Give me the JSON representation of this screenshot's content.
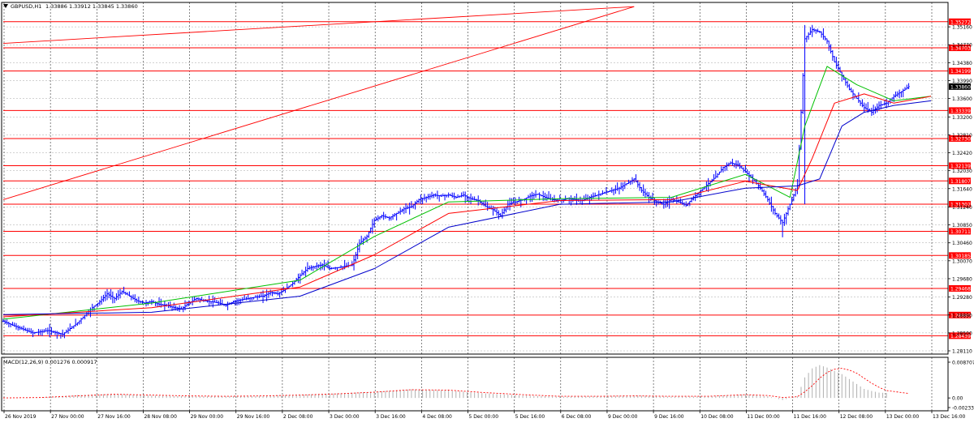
{
  "header": {
    "symbol_timeframe": "GBPUSD,H1",
    "ohlc": "1.33886 1.33912 1.33845 1.33860",
    "icon": "triangle-down-icon"
  },
  "macd_header": {
    "label": "MACD(12,26,9) 0.001276 0.000917"
  },
  "colors": {
    "background": "#ffffff",
    "grid": "#000000",
    "candles": "#0000ff",
    "sma_green": "#00c000",
    "sma_red": "#ff0000",
    "sma_blue": "#0000cc",
    "horizontal_levels": "#ff0000",
    "trend_lines": "#ff0000",
    "macd_hist": "#b0b0b0",
    "macd_signal": "#ff0000",
    "price_label_bg": "#ff0000",
    "current_price_bg": "#000000"
  },
  "chart_data": [
    {
      "type": "candlestick",
      "title": "GBPUSD,H1",
      "ylim": [
        1.2811,
        1.3555
      ],
      "y_ticks": [
        "1.35160",
        "1.34770",
        "1.34380",
        "1.33990",
        "1.33600",
        "1.33200",
        "1.32810",
        "1.32420",
        "1.32030",
        "1.31640",
        "1.31240",
        "1.30850",
        "1.30460",
        "1.30070",
        "1.29680",
        "1.29280",
        "1.28890",
        "1.28500",
        "1.28110"
      ],
      "y_tick_values": [
        1.3516,
        1.3477,
        1.3438,
        1.3399,
        1.336,
        1.332,
        1.3281,
        1.3242,
        1.3203,
        1.3164,
        1.3124,
        1.3085,
        1.3046,
        1.3007,
        1.2968,
        1.2928,
        1.2889,
        1.285,
        1.2811
      ],
      "x_labels": [
        "26 Nov 2019",
        "27 Nov 00:00",
        "27 Nov 16:00",
        "28 Nov 08:00",
        "29 Nov 00:00",
        "29 Nov 16:00",
        "2 Dec 08:00",
        "3 Dec 00:00",
        "3 Dec 16:00",
        "4 Dec 08:00",
        "5 Dec 00:00",
        "5 Dec 16:00",
        "6 Dec 08:00",
        "9 Dec 00:00",
        "9 Dec 16:00",
        "10 Dec 08:00",
        "11 Dec 00:00",
        "11 Dec 16:00",
        "12 Dec 08:00",
        "13 Dec 00:00",
        "13 Dec 16:00"
      ],
      "horizontal_levels": [
        "1.35272",
        "1.34703",
        "1.34199",
        "1.33339",
        "1.32730",
        "1.32139",
        "1.31807",
        "1.31302",
        "1.30711",
        "1.30185",
        "1.29468",
        "1.28889",
        "1.28439"
      ],
      "current_price": "1.33860",
      "price_path": [
        [
          0,
          1.2875
        ],
        [
          4,
          1.2862
        ],
        [
          8,
          1.285
        ],
        [
          12,
          1.2855
        ],
        [
          16,
          1.2847
        ],
        [
          20,
          1.2872
        ],
        [
          24,
          1.2905
        ],
        [
          26,
          1.2918
        ],
        [
          28,
          1.2935
        ],
        [
          30,
          1.2925
        ],
        [
          32,
          1.294
        ],
        [
          34,
          1.293
        ],
        [
          36,
          1.292
        ],
        [
          38,
          1.2915
        ],
        [
          40,
          1.2918
        ],
        [
          42,
          1.2912
        ],
        [
          44,
          1.291
        ],
        [
          46,
          1.2905
        ],
        [
          48,
          1.2902
        ],
        [
          50,
          1.2915
        ],
        [
          52,
          1.2925
        ],
        [
          54,
          1.292
        ],
        [
          56,
          1.2918
        ],
        [
          58,
          1.2915
        ],
        [
          60,
          1.291
        ],
        [
          62,
          1.2918
        ],
        [
          64,
          1.2922
        ],
        [
          66,
          1.2925
        ],
        [
          68,
          1.2928
        ],
        [
          70,
          1.293
        ],
        [
          72,
          1.2938
        ],
        [
          74,
          1.2935
        ],
        [
          76,
          1.2945
        ],
        [
          78,
          1.2958
        ],
        [
          80,
          1.2975
        ],
        [
          82,
          1.299
        ],
        [
          84,
          1.2995
        ],
        [
          86,
          1.2998
        ],
        [
          88,
          1.299
        ],
        [
          90,
          1.2992
        ],
        [
          92,
          1.2995
        ],
        [
          94,
          1.2998
        ],
        [
          95,
          1.302
        ],
        [
          96,
          1.3045
        ],
        [
          98,
          1.306
        ],
        [
          100,
          1.3095
        ],
        [
          102,
          1.3105
        ],
        [
          104,
          1.31
        ],
        [
          106,
          1.311
        ],
        [
          108,
          1.312
        ],
        [
          110,
          1.3125
        ],
        [
          112,
          1.314
        ],
        [
          114,
          1.3145
        ],
        [
          116,
          1.315
        ],
        [
          118,
          1.3148
        ],
        [
          120,
          1.315
        ],
        [
          122,
          1.3145
        ],
        [
          124,
          1.315
        ],
        [
          126,
          1.3142
        ],
        [
          128,
          1.3138
        ],
        [
          130,
          1.3125
        ],
        [
          132,
          1.3118
        ],
        [
          134,
          1.3105
        ],
        [
          136,
          1.313
        ],
        [
          138,
          1.3135
        ],
        [
          140,
          1.314
        ],
        [
          142,
          1.3148
        ],
        [
          144,
          1.3152
        ],
        [
          146,
          1.3145
        ],
        [
          148,
          1.314
        ],
        [
          150,
          1.3138
        ],
        [
          152,
          1.3142
        ],
        [
          154,
          1.314
        ],
        [
          156,
          1.3138
        ],
        [
          158,
          1.3145
        ],
        [
          160,
          1.315
        ],
        [
          162,
          1.3155
        ],
        [
          164,
          1.316
        ],
        [
          166,
          1.3165
        ],
        [
          168,
          1.3175
        ],
        [
          170,
          1.3185
        ],
        [
          172,
          1.316
        ],
        [
          174,
          1.3145
        ],
        [
          176,
          1.3135
        ],
        [
          178,
          1.313
        ],
        [
          180,
          1.314
        ],
        [
          182,
          1.3135
        ],
        [
          184,
          1.3128
        ],
        [
          186,
          1.3145
        ],
        [
          188,
          1.316
        ],
        [
          190,
          1.3175
        ],
        [
          192,
          1.319
        ],
        [
          194,
          1.321
        ],
        [
          196,
          1.322
        ],
        [
          198,
          1.3215
        ],
        [
          200,
          1.32
        ],
        [
          202,
          1.3185
        ],
        [
          204,
          1.3165
        ],
        [
          206,
          1.314
        ],
        [
          208,
          1.311
        ],
        [
          210,
          1.309
        ],
        [
          212,
          1.313
        ],
        [
          214,
          1.317
        ],
        [
          216,
          1.349
        ],
        [
          218,
          1.351
        ],
        [
          220,
          1.3505
        ],
        [
          222,
          1.3485
        ],
        [
          224,
          1.344
        ],
        [
          226,
          1.341
        ],
        [
          228,
          1.338
        ],
        [
          230,
          1.336
        ],
        [
          232,
          1.334
        ],
        [
          234,
          1.333
        ],
        [
          236,
          1.3345
        ],
        [
          238,
          1.335
        ],
        [
          240,
          1.3365
        ],
        [
          242,
          1.3375
        ],
        [
          244,
          1.3386
        ]
      ],
      "series": [
        {
          "name": "",
          "values": [
            [
              0,
              1.288
            ],
            [
              40,
              1.2915
            ],
            [
              80,
              1.2965
            ],
            [
              100,
              1.306
            ],
            [
              120,
              1.3135
            ],
            [
              150,
              1.3142
            ],
            [
              180,
              1.3145
            ],
            [
              200,
              1.3195
            ],
            [
              212,
              1.3145
            ],
            [
              216,
              1.33
            ],
            [
              222,
              1.343
            ],
            [
              230,
              1.339
            ],
            [
              240,
              1.3355
            ],
            [
              250,
              1.3365
            ]
          ]
        },
        {
          "name": "",
          "values": [
            [
              0,
              1.2885
            ],
            [
              40,
              1.2905
            ],
            [
              80,
              1.295
            ],
            [
              100,
              1.302
            ],
            [
              120,
              1.311
            ],
            [
              150,
              1.3138
            ],
            [
              180,
              1.314
            ],
            [
              200,
              1.318
            ],
            [
              214,
              1.316
            ],
            [
              218,
              1.323
            ],
            [
              224,
              1.335
            ],
            [
              232,
              1.337
            ],
            [
              240,
              1.335
            ],
            [
              250,
              1.3365
            ]
          ]
        },
        {
          "name": "",
          "values": [
            [
              0,
              1.289
            ],
            [
              40,
              1.2895
            ],
            [
              80,
              1.293
            ],
            [
              100,
              1.299
            ],
            [
              120,
              1.308
            ],
            [
              150,
              1.313
            ],
            [
              180,
              1.3135
            ],
            [
              200,
              1.3165
            ],
            [
              214,
              1.317
            ],
            [
              220,
              1.3185
            ],
            [
              226,
              1.33
            ],
            [
              232,
              1.333
            ],
            [
              240,
              1.3345
            ],
            [
              250,
              1.3355
            ]
          ]
        }
      ],
      "trend_lines": [
        [
          [
            0,
            1.348
          ],
          [
            170,
            1.356
          ]
        ],
        [
          [
            0,
            1.314
          ],
          [
            170,
            1.356
          ]
        ]
      ]
    },
    {
      "type": "bar",
      "title": "MACD(12,26,9) 0.001276 0.000917",
      "ylim": [
        -0.002339,
        0.008707
      ],
      "y_ticks": [
        "0.008707",
        "0.00",
        "-0.002339"
      ],
      "y_tick_values": [
        0.008707,
        0.0,
        -0.002339
      ],
      "histogram": [
        [
          0,
          -0.0001
        ],
        [
          10,
          0.0001
        ],
        [
          20,
          0.0007
        ],
        [
          30,
          0.001
        ],
        [
          40,
          0.0006
        ],
        [
          50,
          0.0004
        ],
        [
          60,
          0.0004
        ],
        [
          70,
          0.0005
        ],
        [
          80,
          0.0008
        ],
        [
          90,
          0.0011
        ],
        [
          100,
          0.0015
        ],
        [
          110,
          0.0021
        ],
        [
          120,
          0.0018
        ],
        [
          130,
          0.0011
        ],
        [
          140,
          0.0006
        ],
        [
          150,
          0.0003
        ],
        [
          160,
          0.0004
        ],
        [
          170,
          0.0006
        ],
        [
          180,
          0.0003
        ],
        [
          190,
          0.0004
        ],
        [
          200,
          0.0009
        ],
        [
          206,
          0.0004
        ],
        [
          210,
          -0.0005
        ],
        [
          214,
          0.0004
        ],
        [
          216,
          0.005
        ],
        [
          218,
          0.0072
        ],
        [
          220,
          0.008
        ],
        [
          222,
          0.0074
        ],
        [
          224,
          0.0066
        ],
        [
          226,
          0.0058
        ],
        [
          228,
          0.0046
        ],
        [
          230,
          0.0034
        ],
        [
          232,
          0.0022
        ],
        [
          234,
          0.0017
        ],
        [
          236,
          0.0013
        ],
        [
          238,
          0.0012
        ]
      ],
      "signal": [
        [
          0,
          0.0
        ],
        [
          10,
          0.0001
        ],
        [
          20,
          0.0005
        ],
        [
          30,
          0.0009
        ],
        [
          40,
          0.0007
        ],
        [
          50,
          0.0005
        ],
        [
          60,
          0.0004
        ],
        [
          70,
          0.0005
        ],
        [
          80,
          0.0007
        ],
        [
          90,
          0.001
        ],
        [
          100,
          0.0014
        ],
        [
          110,
          0.002
        ],
        [
          120,
          0.0019
        ],
        [
          130,
          0.0013
        ],
        [
          140,
          0.0008
        ],
        [
          150,
          0.0004
        ],
        [
          160,
          0.0004
        ],
        [
          170,
          0.0005
        ],
        [
          180,
          0.0004
        ],
        [
          190,
          0.0004
        ],
        [
          200,
          0.0008
        ],
        [
          206,
          0.0006
        ],
        [
          210,
          0.0001
        ],
        [
          214,
          0.0003
        ],
        [
          216,
          0.0015
        ],
        [
          218,
          0.003
        ],
        [
          220,
          0.0048
        ],
        [
          222,
          0.0062
        ],
        [
          224,
          0.007
        ],
        [
          226,
          0.0072
        ],
        [
          228,
          0.0068
        ],
        [
          230,
          0.006
        ],
        [
          232,
          0.0048
        ],
        [
          234,
          0.0036
        ],
        [
          236,
          0.0026
        ],
        [
          238,
          0.0018
        ],
        [
          244,
          0.0011
        ]
      ]
    }
  ]
}
